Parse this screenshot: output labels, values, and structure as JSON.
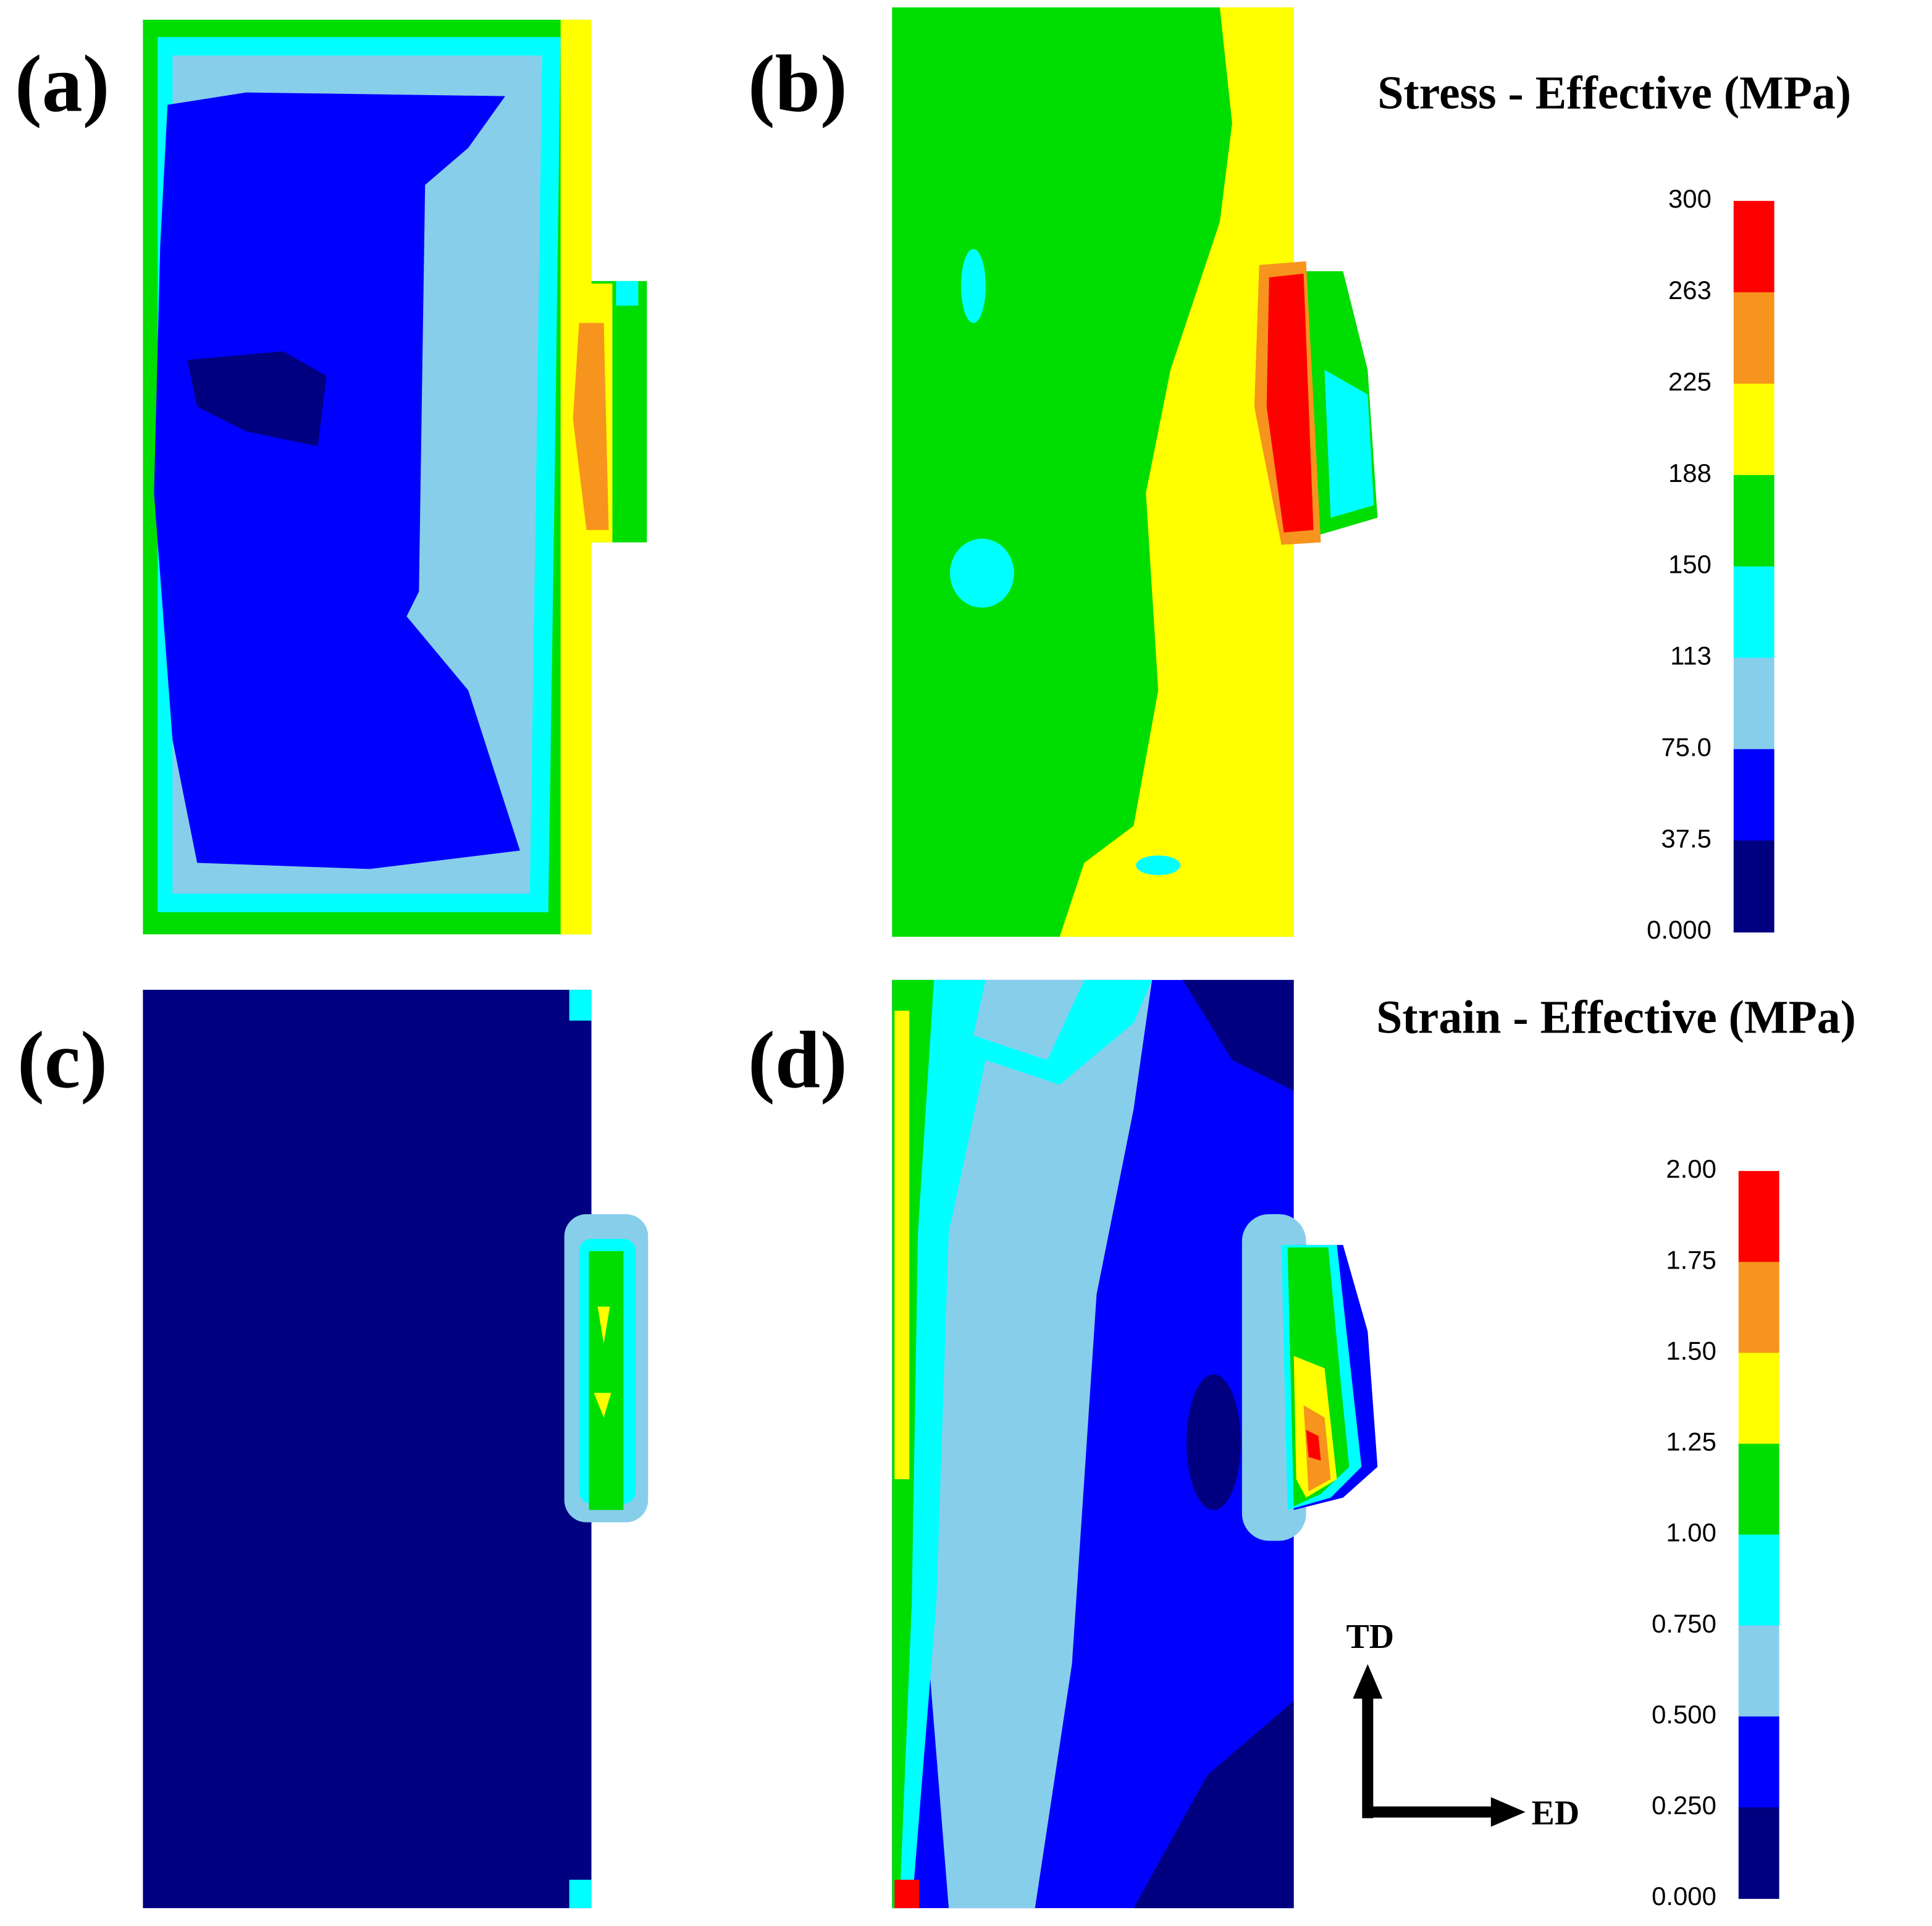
{
  "panels": [
    {
      "label": "(a)"
    },
    {
      "label": "(b)"
    },
    {
      "label": "(c)"
    },
    {
      "label": "(d)"
    }
  ],
  "colorbars": [
    {
      "title": "Stress - Effective (MPa)",
      "ticks": [
        "300",
        "263",
        "225",
        "188",
        "150",
        "113",
        "75.0",
        "37.5",
        "0.000"
      ],
      "colors": [
        "#ff0000",
        "#f7941d",
        "#ffff00",
        "#00dd00",
        "#00ffff",
        "#87ceeb",
        "#0000ff",
        "#000080"
      ]
    },
    {
      "title": "Strain - Effective (MPa)",
      "ticks": [
        "2.00",
        "1.75",
        "1.50",
        "1.25",
        "1.00",
        "0.750",
        "0.500",
        "0.250",
        "0.000"
      ],
      "colors": [
        "#ff0000",
        "#f7941d",
        "#ffff00",
        "#00dd00",
        "#00ffff",
        "#87ceeb",
        "#0000ff",
        "#000080"
      ]
    }
  ],
  "axes": {
    "td": "TD",
    "ed": "ED"
  }
}
